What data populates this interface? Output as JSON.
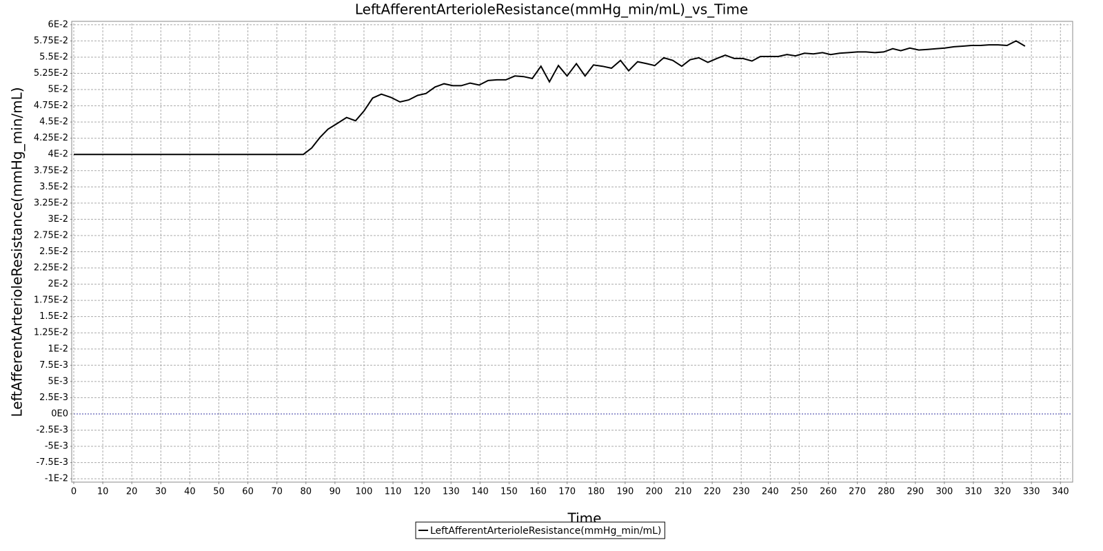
{
  "chart_data": {
    "type": "line",
    "title": "LeftAfferentArterioleResistance(mmHg_min/mL)_vs_Time",
    "x_label": "Time",
    "y_label": "LeftAfferentArterioleResistance(mmHg_min/mL)",
    "x": [
      0,
      79.1,
      82,
      84.8,
      87.6,
      90.5,
      94,
      97.1,
      100,
      103,
      106,
      109.3,
      112.4,
      115.4,
      118.5,
      121.4,
      124.5,
      127.6,
      130.6,
      133.5,
      136.6,
      139.7,
      142.8,
      145.8,
      148.9,
      152,
      155,
      158,
      161,
      163.9,
      167,
      170,
      173.2,
      176.2,
      179.1,
      182.2,
      185.3,
      188.4,
      191.2,
      194.3,
      197.4,
      200.2,
      203.3,
      206.4,
      209.5,
      212.4,
      215.4,
      218.5,
      221.6,
      224.5,
      227.6,
      230.6,
      233.7,
      236.6,
      239.7,
      242.8,
      245.8,
      248.7,
      251.8,
      254.9,
      258,
      260.8,
      263.9,
      267,
      270,
      273,
      276,
      279.1,
      282.2,
      285,
      288.1,
      291.2,
      294.3,
      297.1,
      300.2,
      303.3,
      306.4,
      309.3,
      312.4,
      315.4,
      318.5,
      321.6,
      324.7,
      327.8
    ],
    "series": [
      {
        "name": "LeftAfferentArterioleResistance(mmHg_min/mL)",
        "color": "#000000",
        "values": [
          0.04,
          0.04,
          0.041,
          0.0426,
          0.0439,
          0.0447,
          0.0457,
          0.0452,
          0.0467,
          0.0487,
          0.0493,
          0.0488,
          0.0481,
          0.0484,
          0.0491,
          0.0494,
          0.0504,
          0.0509,
          0.0506,
          0.0506,
          0.051,
          0.0507,
          0.0514,
          0.0515,
          0.0515,
          0.0521,
          0.052,
          0.0517,
          0.0536,
          0.0512,
          0.0537,
          0.0521,
          0.054,
          0.0521,
          0.0538,
          0.0536,
          0.0533,
          0.0545,
          0.0529,
          0.0543,
          0.054,
          0.0537,
          0.0549,
          0.0545,
          0.0536,
          0.0546,
          0.0549,
          0.0542,
          0.0548,
          0.0553,
          0.0548,
          0.0548,
          0.0544,
          0.0551,
          0.0551,
          0.0551,
          0.0554,
          0.0552,
          0.0556,
          0.0555,
          0.0557,
          0.0554,
          0.0556,
          0.0557,
          0.0558,
          0.0558,
          0.0557,
          0.0558,
          0.0563,
          0.056,
          0.0564,
          0.0561,
          0.0562,
          0.0563,
          0.0564,
          0.0566,
          0.0567,
          0.0568,
          0.0568,
          0.0569,
          0.0569,
          0.0568,
          0.0575,
          0.0567
        ]
      }
    ],
    "xlim": [
      0,
      343.5
    ],
    "ylim": [
      -0.0102,
      0.0602
    ],
    "xticks": [
      0,
      10,
      20,
      30,
      40,
      50,
      60,
      70,
      80,
      90,
      100,
      110,
      120,
      130,
      140,
      150,
      160,
      170,
      180,
      190,
      200,
      210,
      220,
      230,
      240,
      250,
      260,
      270,
      280,
      290,
      300,
      310,
      320,
      330,
      340
    ],
    "yticks": [
      {
        "value": 0.06,
        "label": "6E-2"
      },
      {
        "value": 0.0575,
        "label": "5.75E-2"
      },
      {
        "value": 0.055,
        "label": "5.5E-2"
      },
      {
        "value": 0.0525,
        "label": "5.25E-2"
      },
      {
        "value": 0.05,
        "label": "5E-2"
      },
      {
        "value": 0.0475,
        "label": "4.75E-2"
      },
      {
        "value": 0.045,
        "label": "4.5E-2"
      },
      {
        "value": 0.0425,
        "label": "4.25E-2"
      },
      {
        "value": 0.04,
        "label": "4E-2"
      },
      {
        "value": 0.0375,
        "label": "3.75E-2"
      },
      {
        "value": 0.035,
        "label": "3.5E-2"
      },
      {
        "value": 0.0325,
        "label": "3.25E-2"
      },
      {
        "value": 0.03,
        "label": "3E-2"
      },
      {
        "value": 0.0275,
        "label": "2.75E-2"
      },
      {
        "value": 0.025,
        "label": "2.5E-2"
      },
      {
        "value": 0.0225,
        "label": "2.25E-2"
      },
      {
        "value": 0.02,
        "label": "2E-2"
      },
      {
        "value": 0.0175,
        "label": "1.75E-2"
      },
      {
        "value": 0.015,
        "label": "1.5E-2"
      },
      {
        "value": 0.0125,
        "label": "1.25E-2"
      },
      {
        "value": 0.01,
        "label": "1E-2"
      },
      {
        "value": 0.0075,
        "label": "7.5E-3"
      },
      {
        "value": 0.005,
        "label": "5E-3"
      },
      {
        "value": 0.0025,
        "label": "2.5E-3"
      },
      {
        "value": 0,
        "label": "0E0"
      },
      {
        "value": -0.0025,
        "label": "-2.5E-3"
      },
      {
        "value": -0.005,
        "label": "-5E-3"
      },
      {
        "value": -0.0075,
        "label": "-7.5E-3"
      },
      {
        "value": -0.01,
        "label": "-1E-2"
      }
    ],
    "grid": true
  }
}
